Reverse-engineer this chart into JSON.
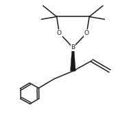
{
  "bg_color": "#ffffff",
  "line_color": "#1a1a1a",
  "line_width": 1.1,
  "figsize": [
    2.05,
    1.7
  ],
  "dpi": 100,
  "xlim": [
    -2.3,
    2.3
  ],
  "ylim": [
    -2.6,
    1.8
  ]
}
